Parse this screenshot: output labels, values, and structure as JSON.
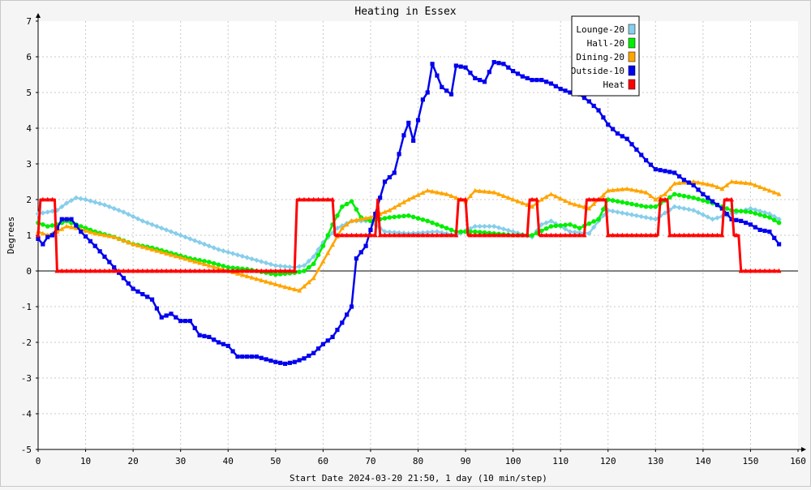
{
  "chart_data": {
    "type": "line",
    "title": "Heating in Essex",
    "xlabel": "Start Date 2024-03-20 21:50, 1 day (10 min/step)",
    "ylabel": "Degrees",
    "xlim": [
      0,
      160
    ],
    "ylim": [
      -5,
      7
    ],
    "xticks": [
      0,
      10,
      20,
      30,
      40,
      50,
      60,
      70,
      80,
      90,
      100,
      110,
      120,
      130,
      140,
      150,
      160
    ],
    "yticks": [
      -5,
      -4,
      -3,
      -2,
      -1,
      0,
      1,
      2,
      3,
      4,
      5,
      6,
      7
    ],
    "grid": true,
    "legend_position": "top-right",
    "series": [
      {
        "name": "Lounge-20",
        "color": "#87ceeb",
        "marker": "diamond",
        "points": [
          [
            0,
            1.6
          ],
          [
            2,
            1.65
          ],
          [
            4,
            1.7
          ],
          [
            6,
            1.9
          ],
          [
            8,
            2.05
          ],
          [
            10,
            2.0
          ],
          [
            14,
            1.85
          ],
          [
            18,
            1.65
          ],
          [
            22,
            1.4
          ],
          [
            26,
            1.2
          ],
          [
            30,
            1.0
          ],
          [
            34,
            0.8
          ],
          [
            38,
            0.6
          ],
          [
            42,
            0.45
          ],
          [
            46,
            0.3
          ],
          [
            50,
            0.15
          ],
          [
            54,
            0.1
          ],
          [
            56,
            0.15
          ],
          [
            58,
            0.4
          ],
          [
            60,
            0.8
          ],
          [
            63,
            1.2
          ],
          [
            66,
            1.4
          ],
          [
            70,
            1.4
          ],
          [
            73,
            1.1
          ],
          [
            78,
            1.05
          ],
          [
            84,
            1.1
          ],
          [
            88,
            1.0
          ],
          [
            92,
            1.25
          ],
          [
            96,
            1.25
          ],
          [
            100,
            1.1
          ],
          [
            104,
            0.95
          ],
          [
            106,
            1.3
          ],
          [
            108,
            1.4
          ],
          [
            112,
            1.1
          ],
          [
            116,
            1.05
          ],
          [
            118,
            1.4
          ],
          [
            120,
            1.7
          ],
          [
            124,
            1.6
          ],
          [
            128,
            1.5
          ],
          [
            130,
            1.45
          ],
          [
            134,
            1.8
          ],
          [
            138,
            1.7
          ],
          [
            142,
            1.45
          ],
          [
            146,
            1.6
          ],
          [
            150,
            1.75
          ],
          [
            154,
            1.6
          ],
          [
            156,
            1.45
          ]
        ]
      },
      {
        "name": "Hall-20",
        "color": "#00ee00",
        "marker": "circle",
        "points": [
          [
            0,
            1.35
          ],
          [
            2,
            1.25
          ],
          [
            4,
            1.3
          ],
          [
            6,
            1.4
          ],
          [
            8,
            1.3
          ],
          [
            12,
            1.1
          ],
          [
            16,
            0.95
          ],
          [
            20,
            0.75
          ],
          [
            24,
            0.65
          ],
          [
            28,
            0.5
          ],
          [
            32,
            0.35
          ],
          [
            36,
            0.25
          ],
          [
            40,
            0.1
          ],
          [
            44,
            0.05
          ],
          [
            48,
            -0.05
          ],
          [
            50,
            -0.1
          ],
          [
            54,
            -0.05
          ],
          [
            56,
            0.0
          ],
          [
            58,
            0.2
          ],
          [
            60,
            0.7
          ],
          [
            62,
            1.3
          ],
          [
            64,
            1.8
          ],
          [
            66,
            1.95
          ],
          [
            68,
            1.5
          ],
          [
            70,
            1.4
          ],
          [
            74,
            1.5
          ],
          [
            78,
            1.55
          ],
          [
            82,
            1.4
          ],
          [
            86,
            1.2
          ],
          [
            88,
            1.1
          ],
          [
            92,
            1.1
          ],
          [
            96,
            1.05
          ],
          [
            100,
            1.0
          ],
          [
            104,
            1.0
          ],
          [
            108,
            1.25
          ],
          [
            112,
            1.3
          ],
          [
            114,
            1.2
          ],
          [
            118,
            1.45
          ],
          [
            120,
            2.0
          ],
          [
            124,
            1.9
          ],
          [
            128,
            1.8
          ],
          [
            130,
            1.8
          ],
          [
            134,
            2.15
          ],
          [
            138,
            2.05
          ],
          [
            142,
            1.9
          ],
          [
            146,
            1.7
          ],
          [
            150,
            1.65
          ],
          [
            154,
            1.5
          ],
          [
            156,
            1.35
          ]
        ]
      },
      {
        "name": "Dining-20",
        "color": "#ffa500",
        "marker": "triangle",
        "points": [
          [
            0,
            1.1
          ],
          [
            2,
            1.0
          ],
          [
            4,
            1.1
          ],
          [
            6,
            1.25
          ],
          [
            8,
            1.2
          ],
          [
            12,
            1.05
          ],
          [
            16,
            0.95
          ],
          [
            20,
            0.75
          ],
          [
            24,
            0.6
          ],
          [
            28,
            0.45
          ],
          [
            32,
            0.3
          ],
          [
            36,
            0.15
          ],
          [
            40,
            0.0
          ],
          [
            44,
            -0.15
          ],
          [
            48,
            -0.3
          ],
          [
            52,
            -0.45
          ],
          [
            55,
            -0.55
          ],
          [
            58,
            -0.2
          ],
          [
            61,
            0.5
          ],
          [
            64,
            1.2
          ],
          [
            66,
            1.4
          ],
          [
            70,
            1.5
          ],
          [
            74,
            1.7
          ],
          [
            78,
            2.0
          ],
          [
            82,
            2.25
          ],
          [
            86,
            2.15
          ],
          [
            90,
            1.95
          ],
          [
            92,
            2.25
          ],
          [
            96,
            2.2
          ],
          [
            100,
            2.0
          ],
          [
            104,
            1.8
          ],
          [
            106,
            2.0
          ],
          [
            108,
            2.15
          ],
          [
            112,
            1.9
          ],
          [
            116,
            1.75
          ],
          [
            118,
            2.0
          ],
          [
            120,
            2.25
          ],
          [
            124,
            2.3
          ],
          [
            128,
            2.2
          ],
          [
            130,
            2.0
          ],
          [
            132,
            2.15
          ],
          [
            134,
            2.45
          ],
          [
            138,
            2.5
          ],
          [
            142,
            2.4
          ],
          [
            144,
            2.3
          ],
          [
            146,
            2.5
          ],
          [
            150,
            2.45
          ],
          [
            154,
            2.25
          ],
          [
            156,
            2.15
          ]
        ]
      },
      {
        "name": "Outside-10",
        "color": "#0000ee",
        "marker": "square",
        "points": [
          [
            0,
            0.9
          ],
          [
            1,
            0.75
          ],
          [
            2,
            0.95
          ],
          [
            3,
            1.0
          ],
          [
            4,
            1.2
          ],
          [
            5,
            1.45
          ],
          [
            7,
            1.45
          ],
          [
            9,
            1.1
          ],
          [
            12,
            0.7
          ],
          [
            16,
            0.1
          ],
          [
            20,
            -0.5
          ],
          [
            24,
            -0.8
          ],
          [
            26,
            -1.3
          ],
          [
            28,
            -1.2
          ],
          [
            30,
            -1.4
          ],
          [
            32,
            -1.4
          ],
          [
            34,
            -1.8
          ],
          [
            36,
            -1.85
          ],
          [
            38,
            -2.0
          ],
          [
            40,
            -2.1
          ],
          [
            42,
            -2.4
          ],
          [
            46,
            -2.4
          ],
          [
            50,
            -2.55
          ],
          [
            52,
            -2.6
          ],
          [
            54,
            -2.55
          ],
          [
            56,
            -2.45
          ],
          [
            58,
            -2.3
          ],
          [
            60,
            -2.05
          ],
          [
            62,
            -1.85
          ],
          [
            64,
            -1.45
          ],
          [
            66,
            -1.0
          ],
          [
            67,
            0.35
          ],
          [
            69,
            0.7
          ],
          [
            71,
            1.6
          ],
          [
            73,
            2.5
          ],
          [
            75,
            2.75
          ],
          [
            77,
            3.8
          ],
          [
            78,
            4.15
          ],
          [
            79,
            3.65
          ],
          [
            81,
            4.8
          ],
          [
            82,
            5.0
          ],
          [
            83,
            5.8
          ],
          [
            85,
            5.15
          ],
          [
            87,
            4.95
          ],
          [
            88,
            5.75
          ],
          [
            90,
            5.7
          ],
          [
            92,
            5.4
          ],
          [
            94,
            5.3
          ],
          [
            96,
            5.85
          ],
          [
            98,
            5.8
          ],
          [
            100,
            5.6
          ],
          [
            102,
            5.45
          ],
          [
            104,
            5.35
          ],
          [
            106,
            5.35
          ],
          [
            108,
            5.25
          ],
          [
            110,
            5.1
          ],
          [
            112,
            5.0
          ],
          [
            114,
            4.95
          ],
          [
            116,
            4.75
          ],
          [
            118,
            4.5
          ],
          [
            120,
            4.1
          ],
          [
            122,
            3.85
          ],
          [
            124,
            3.7
          ],
          [
            126,
            3.4
          ],
          [
            128,
            3.1
          ],
          [
            130,
            2.85
          ],
          [
            132,
            2.8
          ],
          [
            134,
            2.75
          ],
          [
            136,
            2.55
          ],
          [
            138,
            2.4
          ],
          [
            140,
            2.15
          ],
          [
            142,
            1.95
          ],
          [
            144,
            1.75
          ],
          [
            146,
            1.45
          ],
          [
            148,
            1.4
          ],
          [
            150,
            1.3
          ],
          [
            152,
            1.15
          ],
          [
            154,
            1.1
          ],
          [
            156,
            0.75
          ]
        ]
      },
      {
        "name": "Heat",
        "color": "#ff0000",
        "marker": "triangle",
        "points": [
          [
            0,
            1
          ],
          [
            0.5,
            2
          ],
          [
            3.5,
            2
          ],
          [
            4,
            0
          ],
          [
            54,
            0
          ],
          [
            54.5,
            2
          ],
          [
            62,
            2
          ],
          [
            62.5,
            1
          ],
          [
            71,
            1
          ],
          [
            71.5,
            2
          ],
          [
            72,
            1
          ],
          [
            88,
            1
          ],
          [
            88.5,
            2
          ],
          [
            90,
            2
          ],
          [
            90.5,
            1
          ],
          [
            103,
            1
          ],
          [
            103.5,
            2
          ],
          [
            105,
            2
          ],
          [
            105.5,
            1
          ],
          [
            115,
            1
          ],
          [
            115.5,
            2
          ],
          [
            119.5,
            2
          ],
          [
            120,
            1
          ],
          [
            130.5,
            1
          ],
          [
            131,
            2
          ],
          [
            132.5,
            2
          ],
          [
            133,
            1
          ],
          [
            144,
            1
          ],
          [
            144.5,
            2
          ],
          [
            146,
            2
          ],
          [
            146.5,
            1
          ],
          [
            147.5,
            1
          ],
          [
            148,
            0
          ],
          [
            156,
            0
          ]
        ]
      }
    ]
  }
}
